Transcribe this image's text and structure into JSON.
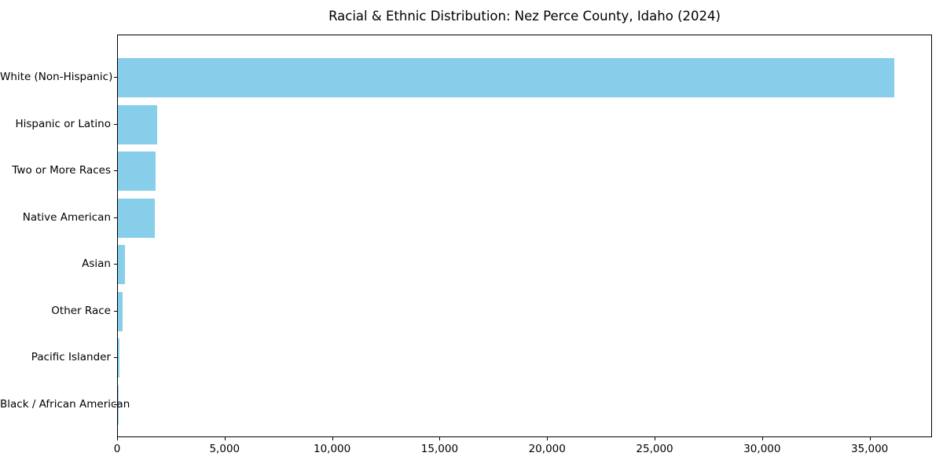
{
  "chart_data": {
    "type": "bar",
    "orientation": "horizontal",
    "title": "Racial & Ethnic Distribution: Nez Perce County, Idaho (2024)",
    "categories": [
      "White (Non-Hispanic)",
      "Hispanic or Latino",
      "Two or More Races",
      "Native American",
      "Asian",
      "Other Race",
      "Pacific Islander",
      "Black / African American"
    ],
    "values": [
      36100,
      1830,
      1760,
      1720,
      330,
      220,
      90,
      40
    ],
    "xlabel": "",
    "ylabel": "",
    "xlim": [
      0,
      37900
    ],
    "xticks": [
      0,
      5000,
      10000,
      15000,
      20000,
      25000,
      30000,
      35000
    ],
    "xtick_labels": [
      "0",
      "5,000",
      "10,000",
      "15,000",
      "20,000",
      "25,000",
      "30,000",
      "35,000"
    ],
    "bar_color": "#87CEEB",
    "grid": false,
    "legend": null,
    "background_color": "#ffffff",
    "spine_color": "#000000"
  }
}
